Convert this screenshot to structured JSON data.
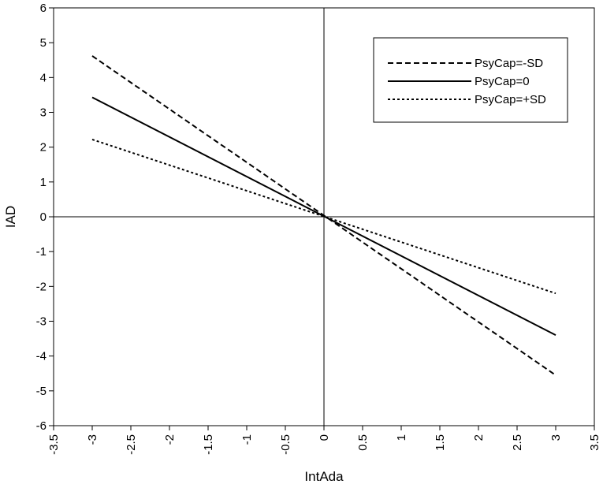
{
  "chart_data": {
    "type": "line",
    "title": "",
    "xlabel": "IntAda",
    "ylabel": "IAD",
    "xlim": [
      -3.5,
      3.5
    ],
    "ylim": [
      -6,
      6
    ],
    "xticks": [
      -3.5,
      -3,
      -2.5,
      -2,
      -1.5,
      -1,
      -0.5,
      0,
      0.5,
      1,
      1.5,
      2,
      2.5,
      3,
      3.5
    ],
    "yticks": [
      -6,
      -5,
      -4,
      -3,
      -2,
      -1,
      0,
      1,
      2,
      3,
      4,
      5,
      6
    ],
    "grid": false,
    "legend_position": "top-right",
    "series": [
      {
        "name": "PsyCap=-SD",
        "style": "dashed",
        "color": "#000000",
        "x": [
          -3,
          3
        ],
        "y": [
          4.62,
          -4.55
        ]
      },
      {
        "name": "PsyCap=0",
        "style": "solid",
        "color": "#000000",
        "x": [
          -3,
          3
        ],
        "y": [
          3.43,
          -3.4
        ]
      },
      {
        "name": "PsyCap=+SD",
        "style": "dotted",
        "color": "#000000",
        "x": [
          -3,
          3
        ],
        "y": [
          2.22,
          -2.2
        ]
      }
    ]
  }
}
